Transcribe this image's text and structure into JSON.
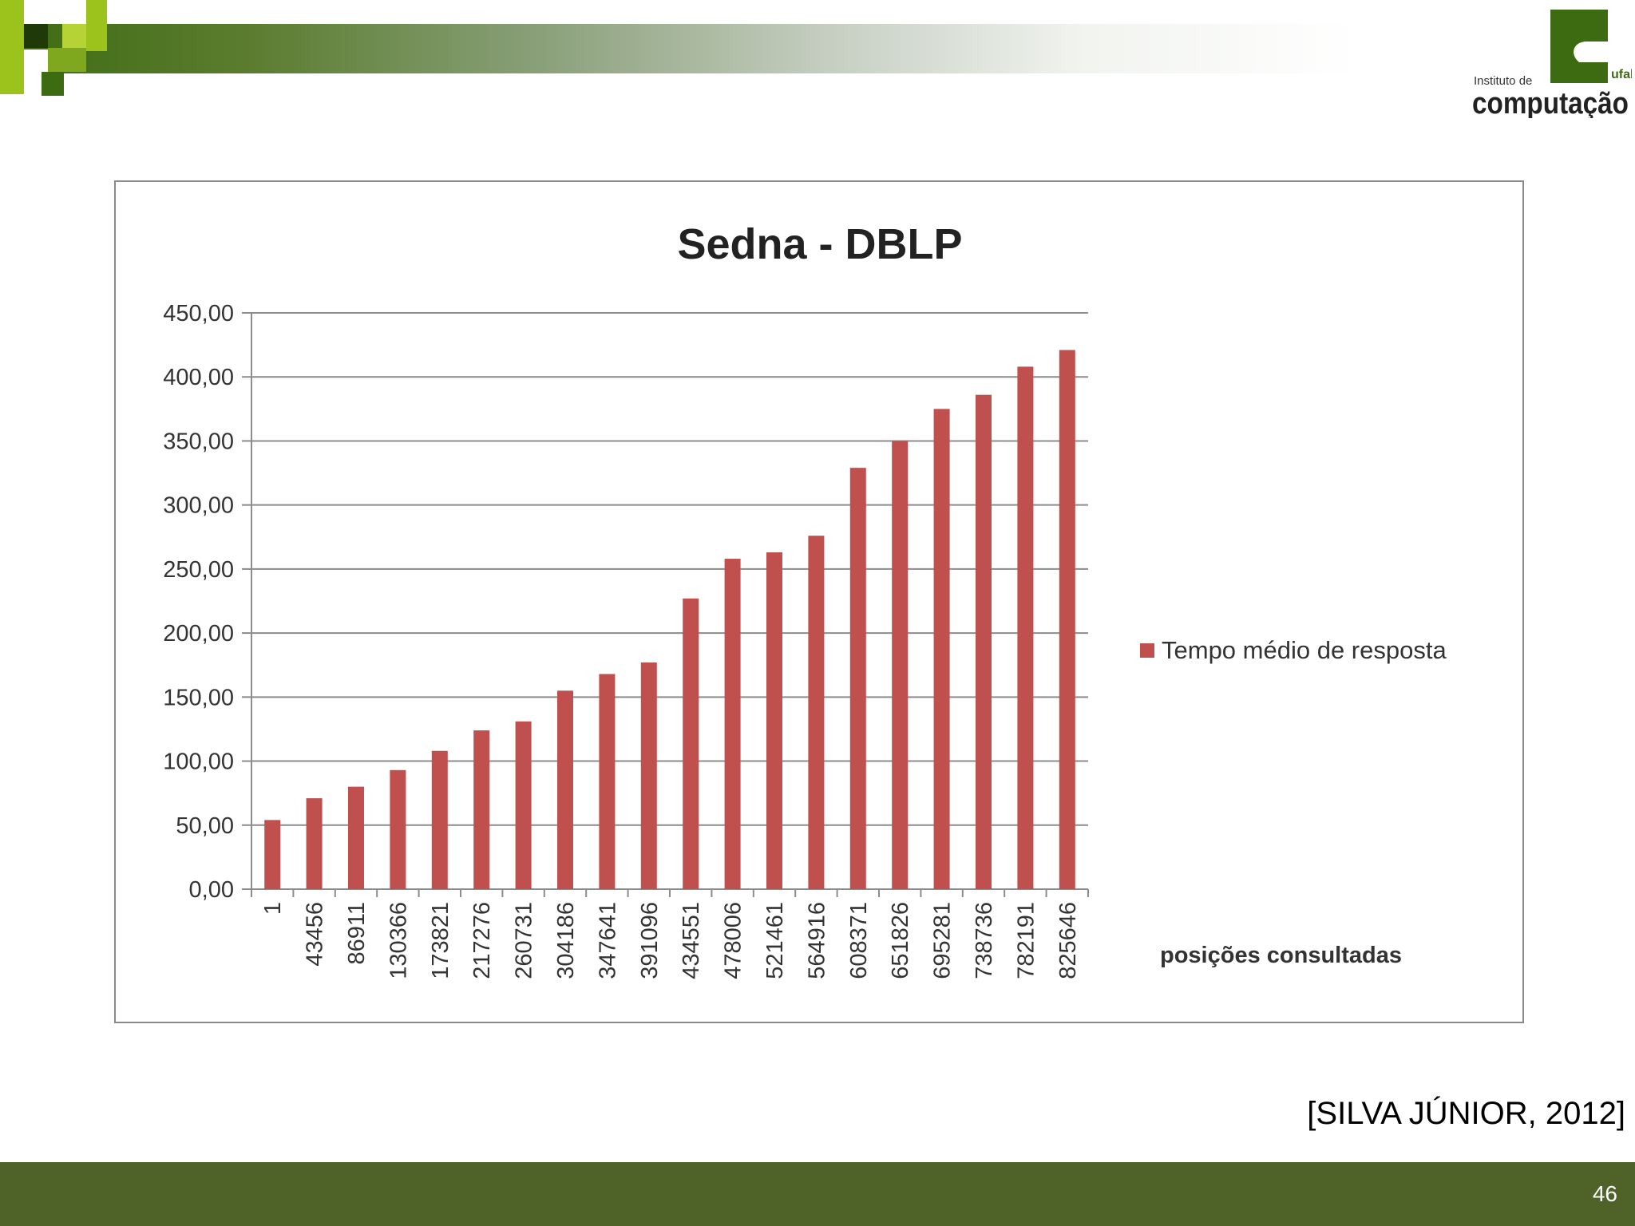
{
  "logo": {
    "small_text": "Instituto de",
    "big_text": "computação",
    "mark_text": "ufal"
  },
  "citation": "[SILVA JÚNIOR, 2012]",
  "page_number": "46",
  "colors": {
    "bar": "#c0504d",
    "footer": "#4f6228",
    "accent_green": "#3d6b12",
    "light_green": "#9bc31c"
  },
  "chart_data": {
    "type": "bar",
    "title": "Sedna - DBLP",
    "xlabel": "posições consultadas",
    "ylabel": "",
    "ylim": [
      0,
      450
    ],
    "yticks": [
      "0,00",
      "50,00",
      "100,00",
      "150,00",
      "200,00",
      "250,00",
      "300,00",
      "350,00",
      "400,00",
      "450,00"
    ],
    "grid": true,
    "legend_position": "right",
    "categories": [
      "1",
      "43456",
      "86911",
      "130366",
      "173821",
      "217276",
      "260731",
      "304186",
      "347641",
      "391096",
      "434551",
      "478006",
      "521461",
      "564916",
      "608371",
      "651826",
      "695281",
      "738736",
      "782191",
      "825646"
    ],
    "series": [
      {
        "name": "Tempo médio de resposta",
        "values": [
          54,
          71,
          80,
          93,
          108,
          124,
          131,
          155,
          168,
          177,
          227,
          258,
          263,
          276,
          329,
          350,
          375,
          386,
          408,
          421
        ]
      }
    ]
  }
}
